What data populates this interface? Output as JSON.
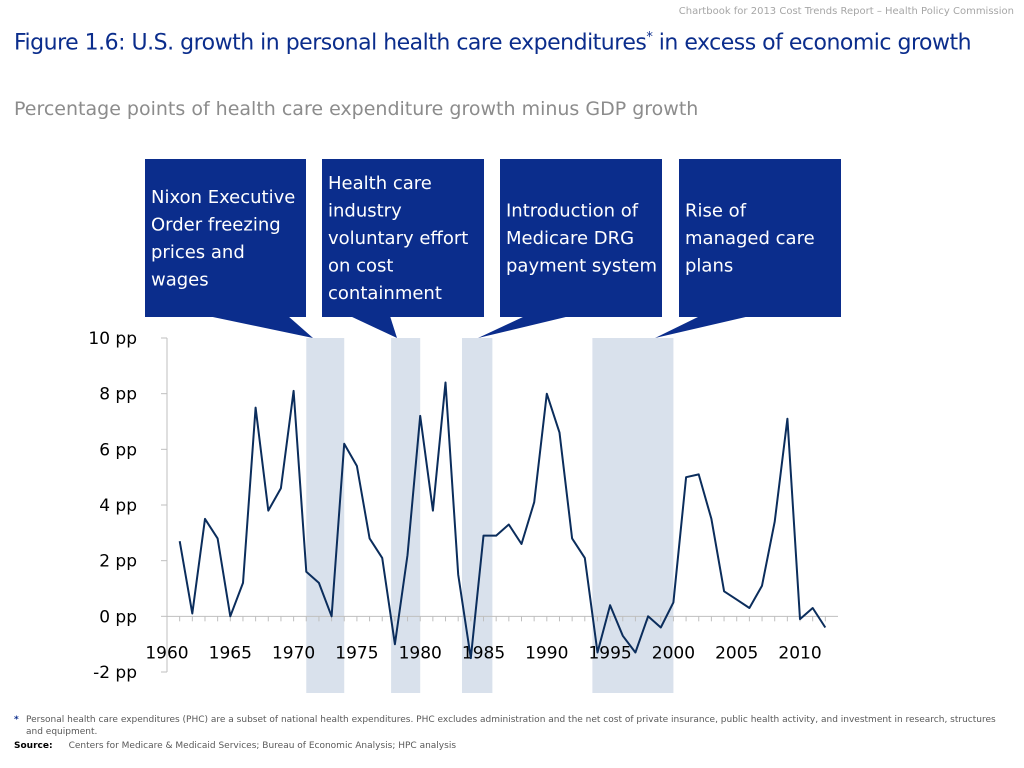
{
  "header": {
    "note": "Chartbook for 2013 Cost Trends Report – Health Policy Commission",
    "title_main": "Figure 1.6: U.S. growth in personal health care expenditures",
    "title_mark": "*",
    "title_tail": " in excess of economic growth",
    "subtitle": "Percentage points of health care expenditure growth minus GDP growth"
  },
  "colors": {
    "line": "#0b2d5c",
    "callout": "#0b2d8c",
    "shade": "#d9e1ec",
    "axis": "#bfbfbf"
  },
  "callouts": [
    {
      "lines": [
        "Nixon Executive",
        "Order freezing",
        "prices and",
        "wages"
      ],
      "band": [
        1971,
        1974
      ]
    },
    {
      "lines": [
        "Health care",
        "industry",
        "voluntary effort",
        "on cost",
        "containment"
      ],
      "band": [
        1977.7,
        1980
      ]
    },
    {
      "lines": [
        "Introduction of",
        "Medicare DRG",
        "payment system"
      ],
      "band": [
        1983.3,
        1985.7
      ]
    },
    {
      "lines": [
        "Rise of",
        "managed care",
        "plans"
      ],
      "band": [
        1993.6,
        2000
      ]
    }
  ],
  "chart_data": {
    "type": "line",
    "x": [
      1961,
      1962,
      1963,
      1964,
      1965,
      1966,
      1967,
      1968,
      1969,
      1970,
      1971,
      1972,
      1973,
      1974,
      1975,
      1976,
      1977,
      1978,
      1979,
      1980,
      1981,
      1982,
      1983,
      1984,
      1985,
      1986,
      1987,
      1988,
      1989,
      1990,
      1991,
      1992,
      1993,
      1994,
      1995,
      1996,
      1997,
      1998,
      1999,
      2000,
      2001,
      2002,
      2003,
      2004,
      2005,
      2006,
      2007,
      2008,
      2009,
      2010,
      2011,
      2012
    ],
    "series": [
      {
        "values": [
          2.7,
          0.1,
          3.5,
          2.8,
          0.0,
          1.2,
          7.5,
          3.8,
          4.6,
          8.1,
          1.6,
          1.2,
          0.0,
          6.2,
          5.4,
          2.8,
          2.1,
          -1.0,
          2.2,
          7.2,
          3.8,
          8.4,
          1.5,
          -1.5,
          2.9,
          2.9,
          3.3,
          2.6,
          4.1,
          8.0,
          6.6,
          2.8,
          2.1,
          -1.3,
          0.4,
          -0.7,
          -1.3,
          0.0,
          -0.4,
          0.5,
          5.0,
          5.1,
          3.5,
          0.9,
          0.6,
          0.3,
          1.1,
          3.4,
          7.1,
          -0.1,
          0.3,
          -0.4
        ]
      }
    ],
    "x_ticks": [
      "1960",
      "1965",
      "1970",
      "1975",
      "1980",
      "1985",
      "1990",
      "1995",
      "2000",
      "2005",
      "2010"
    ],
    "y_ticks": [
      "10 pp",
      "8 pp",
      "6 pp",
      "4 pp",
      "2 pp",
      "0 pp",
      "-2 pp"
    ],
    "xlim": [
      1960,
      2013
    ],
    "ylim": [
      -2,
      10
    ],
    "grid": false,
    "legend": "none"
  },
  "footnote": {
    "mark": "*",
    "text": "Personal health care expenditures (PHC) are a subset of national health expenditures. PHC excludes administration and the net cost of private insurance, public health activity, and investment in research, structures and equipment."
  },
  "source": {
    "label": "Source:",
    "text": "Centers for Medicare & Medicaid Services; Bureau of Economic Analysis; HPC analysis"
  }
}
